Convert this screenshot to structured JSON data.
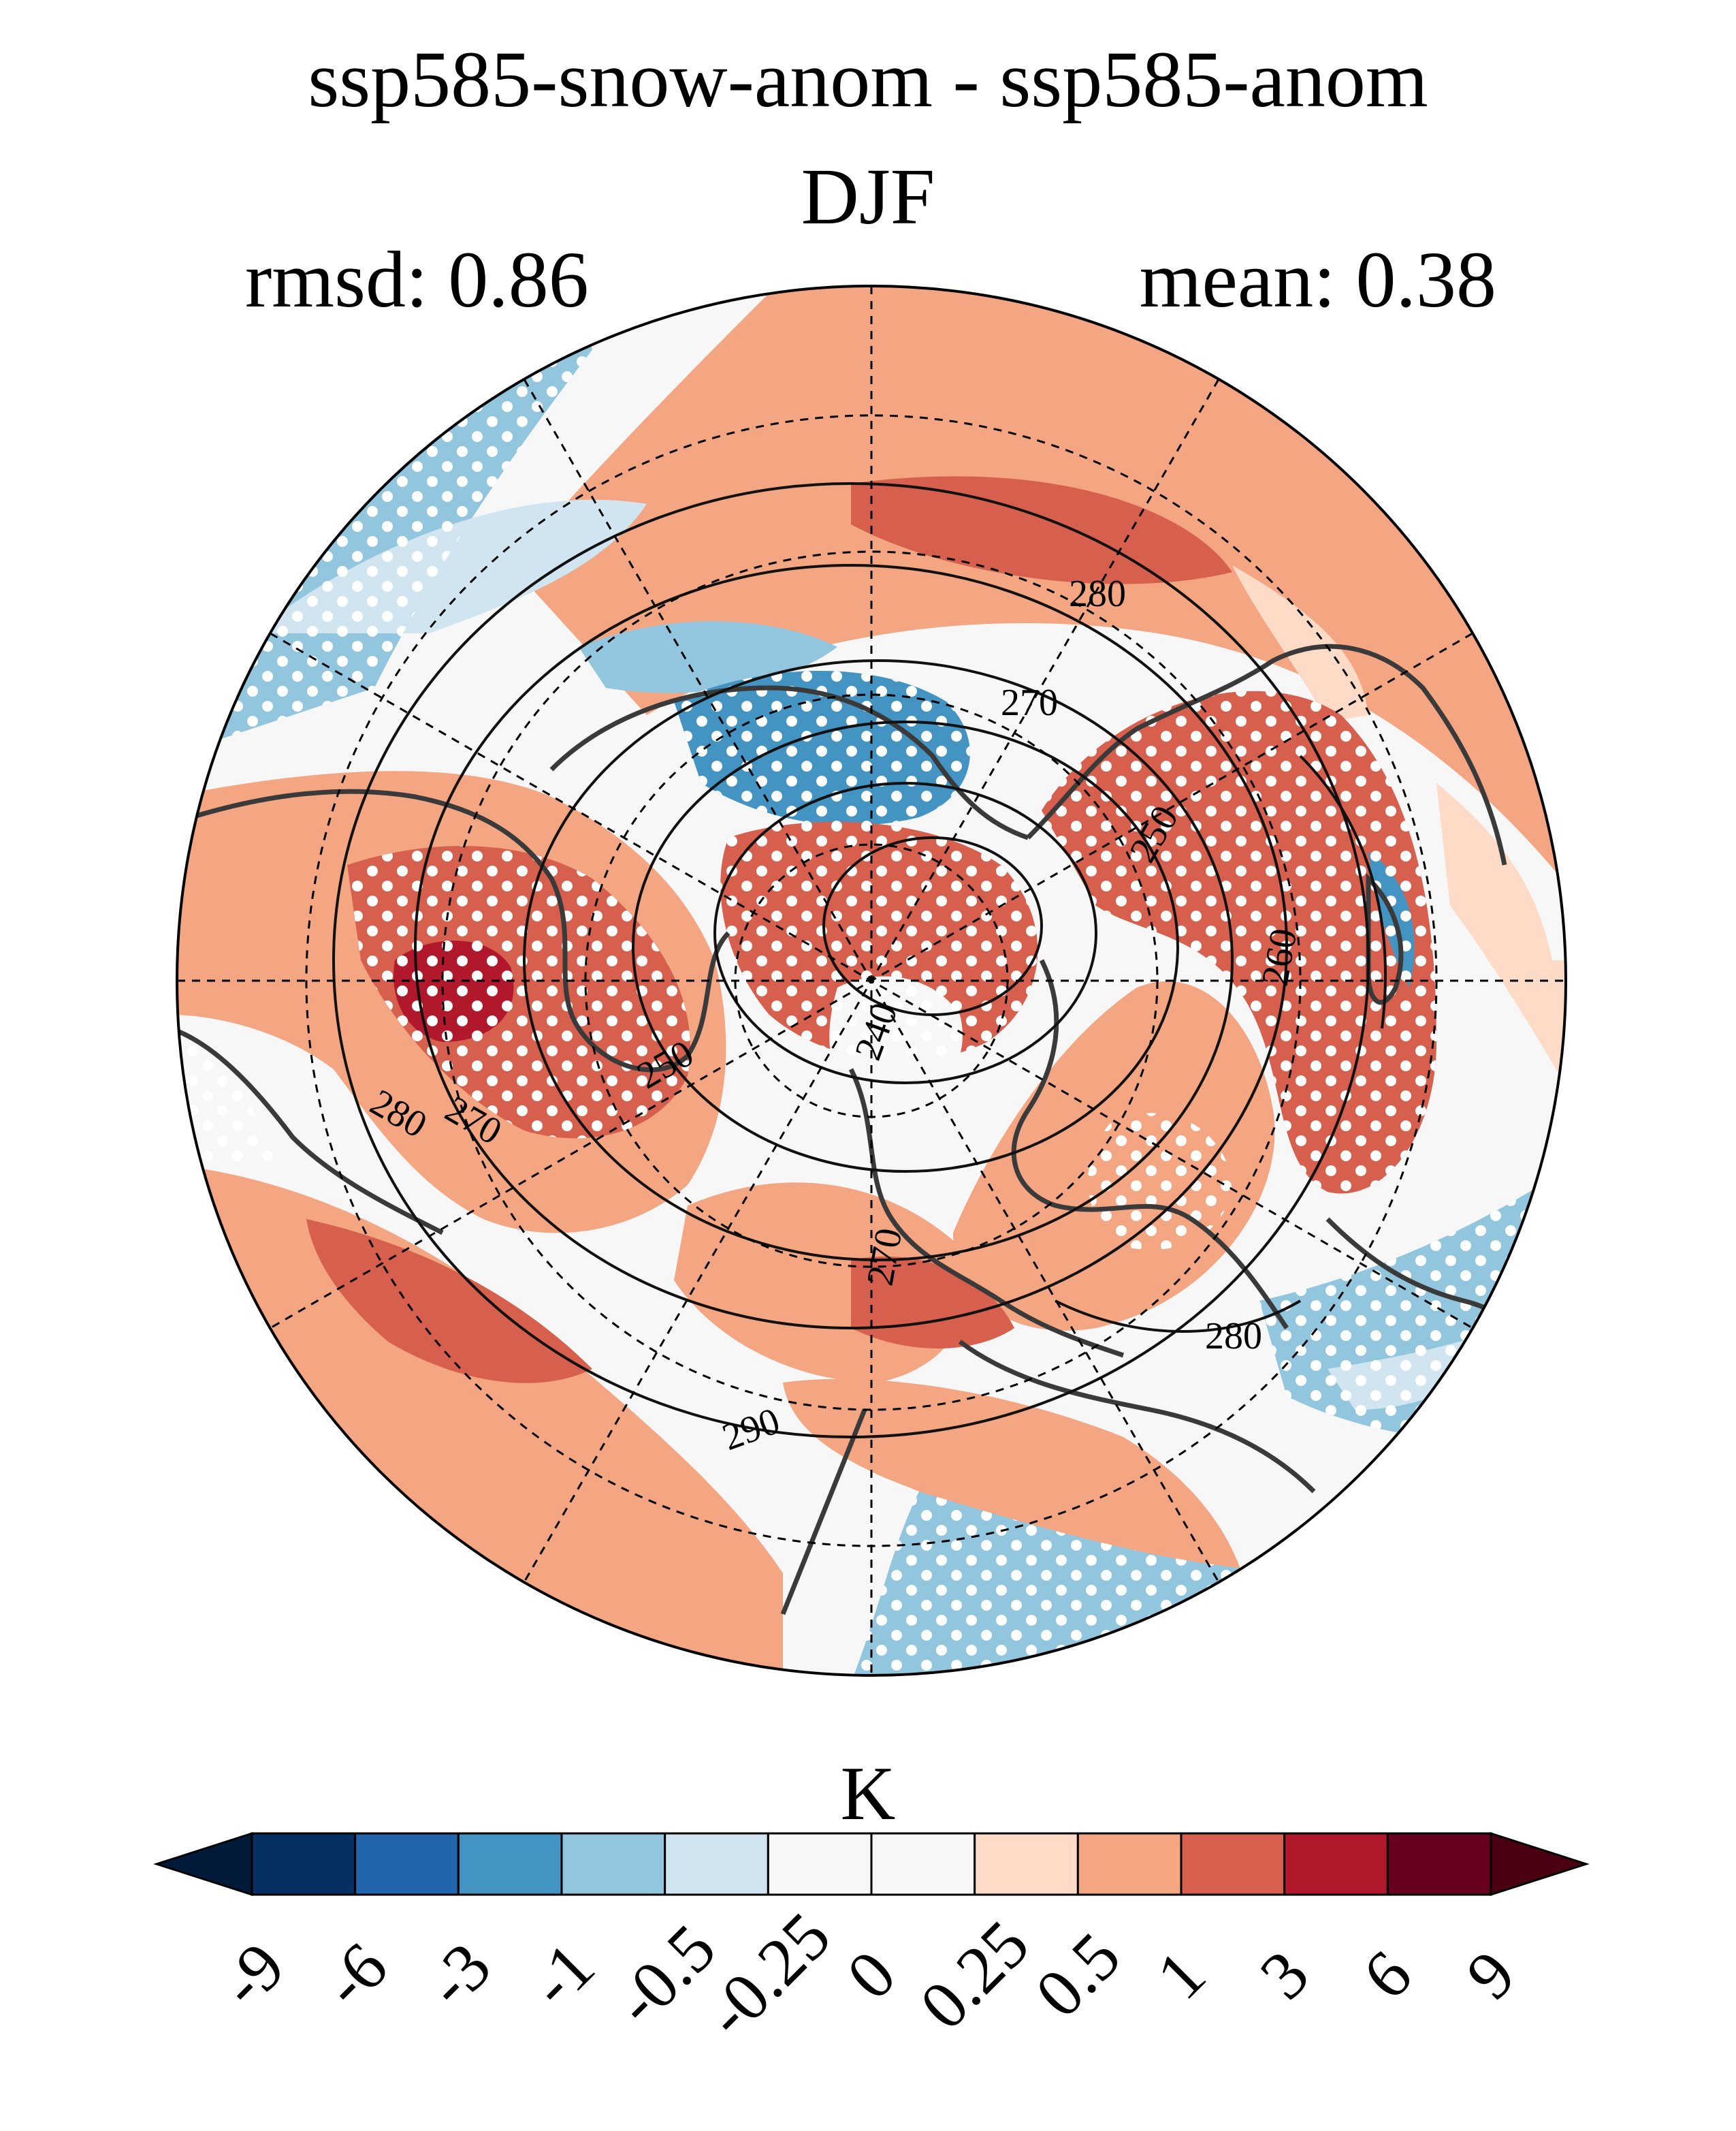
{
  "figure": {
    "title_line1": "ssp585-snow-anom - ssp585-anom",
    "title_line2": "DJF",
    "rmsd_label": "rmsd: 0.86",
    "mean_label": "mean: 0.38"
  },
  "colorbar": {
    "unit": "K",
    "levels": [
      "-9",
      "-6",
      "-3",
      "-1",
      "-0.5",
      "-0.25",
      "0",
      "0.25",
      "0.5",
      "1",
      "3",
      "6",
      "9"
    ],
    "colors": [
      "#053061",
      "#2166ac",
      "#4393c3",
      "#92c5de",
      "#d1e5f0",
      "#f7f7f7",
      "#f7f7f7",
      "#fddbc7",
      "#f4a582",
      "#d6604d",
      "#b2182b",
      "#67001f"
    ],
    "under_color": "#021a3a",
    "over_color": "#4a0010"
  },
  "contour_labels": [
    "280",
    "270",
    "250",
    "260",
    "240",
    "250",
    "280",
    "270",
    "290",
    "280",
    "270"
  ],
  "palette": {
    "coast": "#3a3a3a",
    "contour": "#111111",
    "stipple": "#ffffff"
  }
}
